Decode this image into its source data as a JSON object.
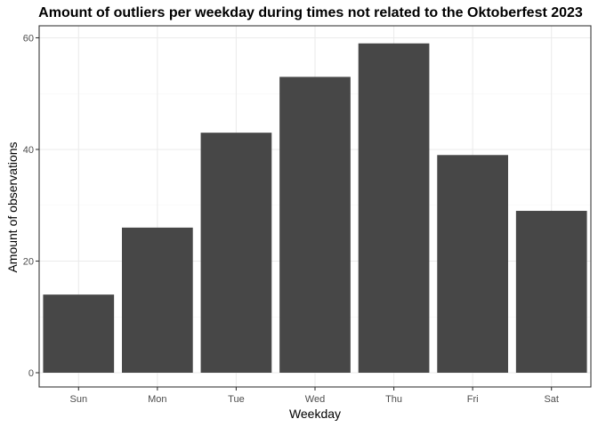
{
  "chart_data": {
    "type": "bar",
    "title": "Amount of outliers per weekday during times not related to the Oktoberfest 2023",
    "xlabel": "Weekday",
    "ylabel": "Amount of observations",
    "categories": [
      "Sun",
      "Mon",
      "Tue",
      "Wed",
      "Thu",
      "Fri",
      "Sat"
    ],
    "values": [
      14,
      26,
      43,
      53,
      59,
      39,
      29
    ],
    "ylim": [
      0,
      62
    ],
    "yticks": [
      0,
      20,
      40,
      60
    ],
    "ytick_labels": [
      "0",
      "20",
      "40",
      "60"
    ],
    "grid": true,
    "legend": "none",
    "colors": {
      "bar": "#474747",
      "panel_background": "#ffffff",
      "grid": "#ebebeb",
      "border": "#333333"
    }
  }
}
